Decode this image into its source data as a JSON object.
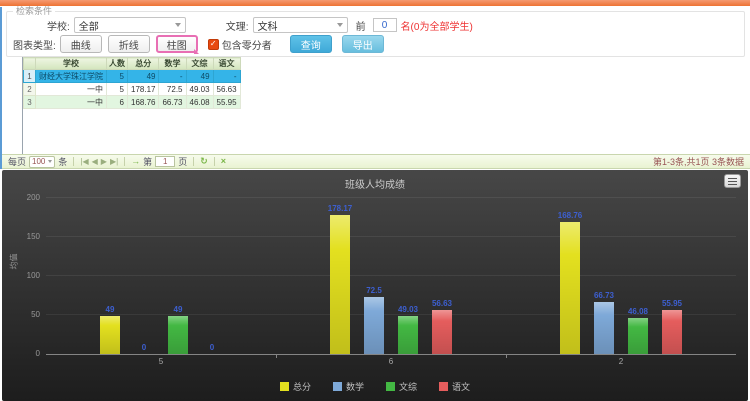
{
  "colors": {
    "top_bar": "#ed7233",
    "left_edge": "#5b9bd5",
    "selected_row": "#34b4e8",
    "primary_button": "#3fa9d8",
    "secondary_button": "#67bede",
    "selected_chart_type_border": "#e86fb4",
    "checkbox": "#e8490f",
    "bar_label": "#3d5fd0"
  },
  "icons": {
    "first_page": "|◀",
    "prev_page": "◀",
    "next_page": "▶",
    "last_page": "▶|",
    "go_page": "→",
    "refresh": "↻",
    "maximize": "×",
    "check": "✓"
  },
  "search": {
    "legend": "检索条件",
    "school_label": "学校:",
    "school_value": "全部",
    "track_label": "文理:",
    "track_value": "文科",
    "top_prefix": "前",
    "top_value": "0",
    "top_suffix": "名(0为全部学生)",
    "chart_type_label": "图表类型:",
    "chart_types": [
      {
        "label": "曲线",
        "selected": false
      },
      {
        "label": "折线",
        "selected": false
      },
      {
        "label": "柱图",
        "selected": true
      }
    ],
    "include_zero_label": "包含零分者",
    "include_zero_checked": true,
    "query_button": "查询",
    "export_button": "导出"
  },
  "table": {
    "columns": [
      "学校",
      "人数",
      "总分",
      "数学",
      "文综",
      "语文"
    ],
    "rows": [
      {
        "num": "1",
        "selected": true,
        "cells": [
          "财经大学珠江学院",
          "5",
          "49",
          "-",
          "49",
          "-"
        ]
      },
      {
        "num": "2",
        "selected": false,
        "cells": [
          "一中",
          "5",
          "178.17",
          "72.5",
          "49.03",
          "56.63"
        ]
      },
      {
        "num": "3",
        "selected": false,
        "cells": [
          "一中",
          "6",
          "168.76",
          "66.73",
          "46.08",
          "55.95"
        ]
      }
    ]
  },
  "pager": {
    "per_page_prefix": "每页",
    "per_page_value": "100",
    "per_page_suffix": "条",
    "page_prefix": "第",
    "page_value": "1",
    "page_suffix": "页",
    "summary": "第1-3条,共1页 3条数据"
  },
  "chart_data": {
    "type": "bar",
    "title": "班级人均成绩",
    "xlabel": "",
    "ylabel": "均值",
    "categories": [
      "5",
      "6",
      "2"
    ],
    "series": [
      {
        "name": "总分",
        "color": "#e3e01f",
        "values": [
          49,
          178.17,
          168.76
        ]
      },
      {
        "name": "数学",
        "color": "#7ea9d8",
        "values": [
          0,
          72.5,
          66.73
        ]
      },
      {
        "name": "文综",
        "color": "#43b843",
        "values": [
          49,
          49.03,
          46.08
        ]
      },
      {
        "name": "语文",
        "color": "#e55d5d",
        "values": [
          0,
          56.63,
          55.95
        ]
      }
    ],
    "ylim": [
      0,
      200
    ],
    "yticks": [
      0,
      50,
      100,
      150,
      200
    ],
    "grid": true,
    "legend_position": "bottom"
  }
}
